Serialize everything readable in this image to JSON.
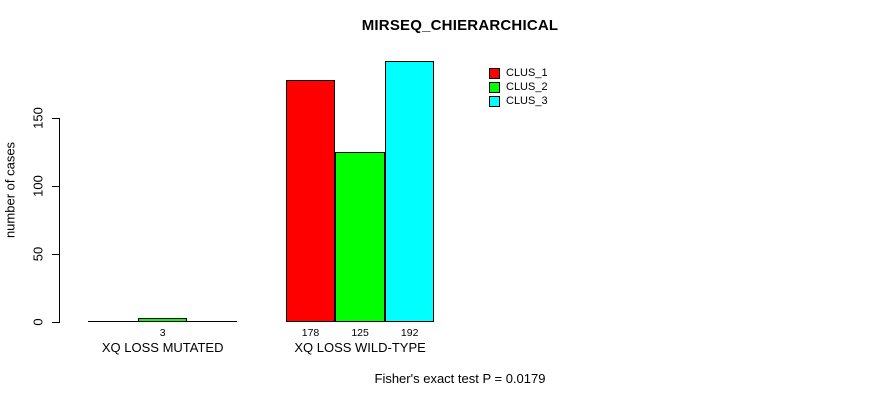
{
  "chart_data": {
    "type": "bar",
    "title": "MIRSEQ_CHIERARCHICAL",
    "ylabel": "number of cases",
    "xlabel": "",
    "categories": [
      "XQ LOSS MUTATED",
      "XQ LOSS WILD-TYPE"
    ],
    "series": [
      {
        "name": "CLUS_1",
        "color": "#FF0000",
        "values": [
          0,
          178
        ]
      },
      {
        "name": "CLUS_2",
        "color": "#00FF00",
        "values": [
          3,
          125
        ]
      },
      {
        "name": "CLUS_3",
        "color": "#00FFFF",
        "values": [
          0,
          192
        ]
      }
    ],
    "bar_value_labels": [
      [
        "",
        "3",
        ""
      ],
      [
        "178",
        "125",
        "192"
      ]
    ],
    "yticks": [
      0,
      50,
      100,
      150
    ],
    "ylim": [
      0,
      193
    ],
    "grid": false,
    "legend_position": "inside-top-right",
    "annotation": "Fisher's exact test P = 0.0179",
    "axis_color": "#000000",
    "text_color": "#000000",
    "background": "#FFFFFF"
  }
}
